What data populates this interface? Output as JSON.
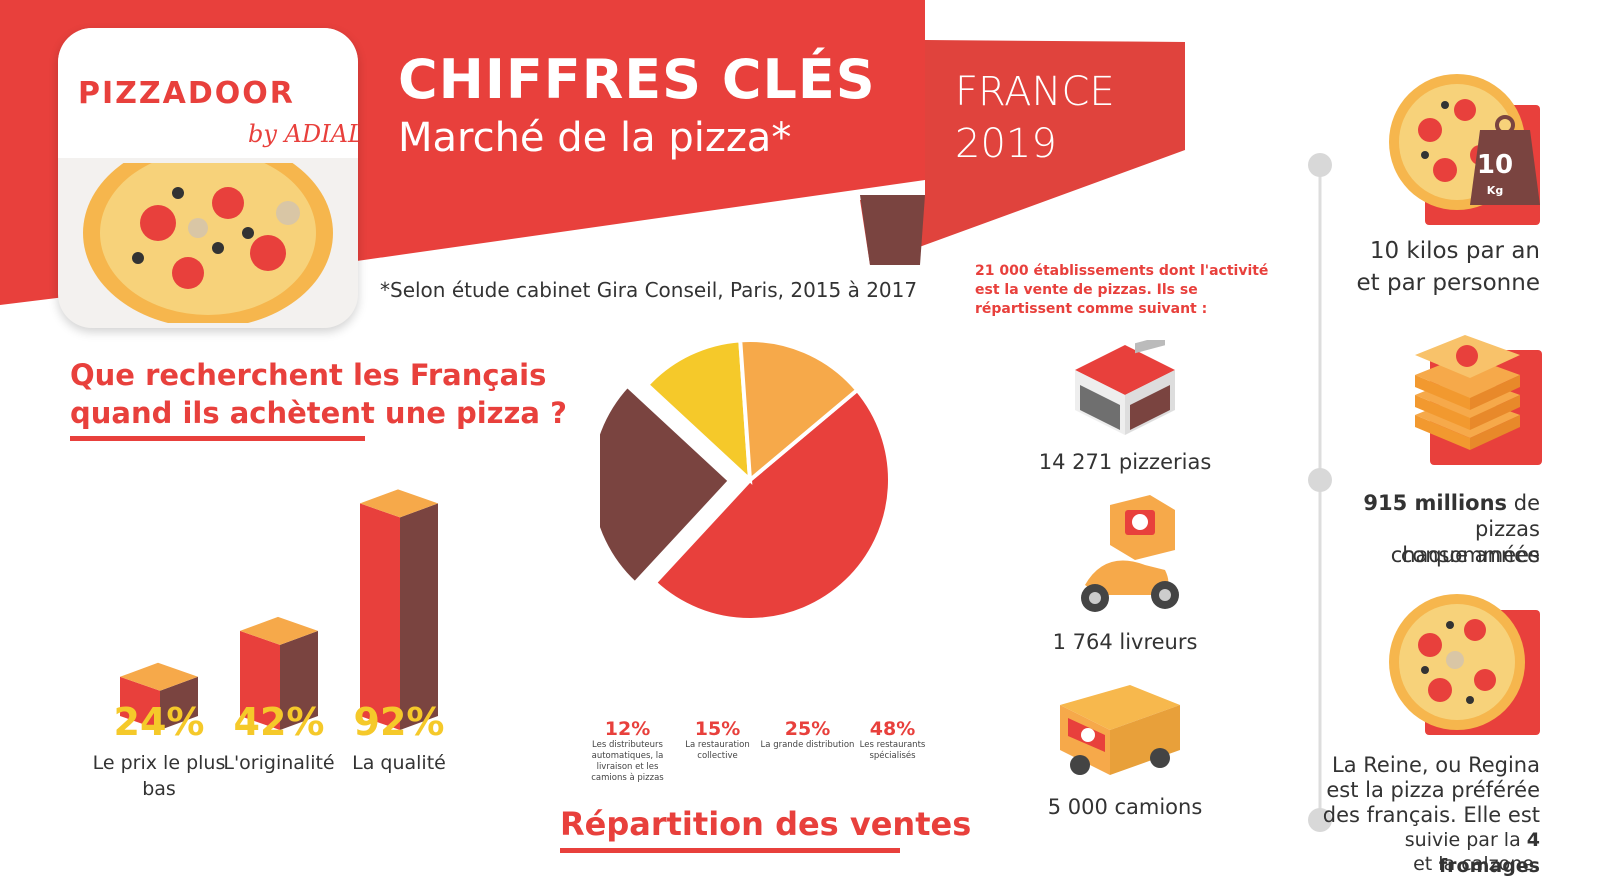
{
  "header": {
    "logo_main": "PIZZADOOR",
    "logo_sub": "by ADIAL",
    "title": "CHIFFRES CLÉS",
    "subtitle": "Marché de la pizza*",
    "country": "FRANCE",
    "year": "2019",
    "footnote": "*Selon étude cabinet Gira Conseil, Paris, 2015 à 2017"
  },
  "survey": {
    "heading_line1": "Que recherchent les Français",
    "heading_line2": "quand ils achètent une pizza ?"
  },
  "pie": {
    "heading": "Répartition des ventes",
    "legend": [
      {
        "pct": "12%",
        "desc": "Les distributeurs automatiques, la livraison et les camions à pizzas"
      },
      {
        "pct": "15%",
        "desc": "La restauration collective"
      },
      {
        "pct": "25%",
        "desc": "La grande distribution"
      },
      {
        "pct": "48%",
        "desc": "Les restaurants spécialisés"
      }
    ]
  },
  "establishments": {
    "intro": "21 000 établissements dont l'activité est la vente de pizzas. Ils se répartissent comme suivant :",
    "items": [
      {
        "label": "14 271 pizzerias"
      },
      {
        "label": "1 764 livreurs"
      },
      {
        "label": "5 000 camions"
      }
    ]
  },
  "facts": {
    "weight_badge": "10",
    "weight_unit": "Kg",
    "kilos_line1": "10 kilos par an",
    "kilos_line2": "et par personne",
    "millions_bold": "915 millions",
    "millions_rest": " de",
    "millions_line2": "pizzas consommées",
    "millions_line3": "chaque année",
    "reine_line1": "La Reine, ou Regina",
    "reine_line2": "est la pizza préférée",
    "reine_line3": "des français. Elle est",
    "reine_line4_a": "suivie par la ",
    "reine_line4_b": "4 fromages",
    "reine_line5": "et la calzone."
  },
  "colors": {
    "red": "#e8403c",
    "dark_brown": "#7a4440",
    "orange": "#f6a94a",
    "yellow": "#f5c92a",
    "pct_yellow": "#f5c92a"
  },
  "chart_data": [
    {
      "type": "bar",
      "categories": [
        "Le prix le plus bas",
        "L'originalité",
        "La qualité"
      ],
      "values": [
        24,
        42,
        92
      ],
      "value_labels": [
        "24%",
        "42%",
        "92%"
      ],
      "ylim": [
        0,
        100
      ]
    },
    {
      "type": "pie",
      "series": [
        {
          "name": "Les restaurants spécialisés",
          "value": 48,
          "color": "#e8403c"
        },
        {
          "name": "La grande distribution",
          "value": 25,
          "color": "#7a4440"
        },
        {
          "name": "Les distributeurs automatiques, la livraison et les camions à pizzas",
          "value": 12,
          "color": "#f5c92a"
        },
        {
          "name": "La restauration collective",
          "value": 15,
          "color": "#f6a94a"
        }
      ]
    }
  ]
}
